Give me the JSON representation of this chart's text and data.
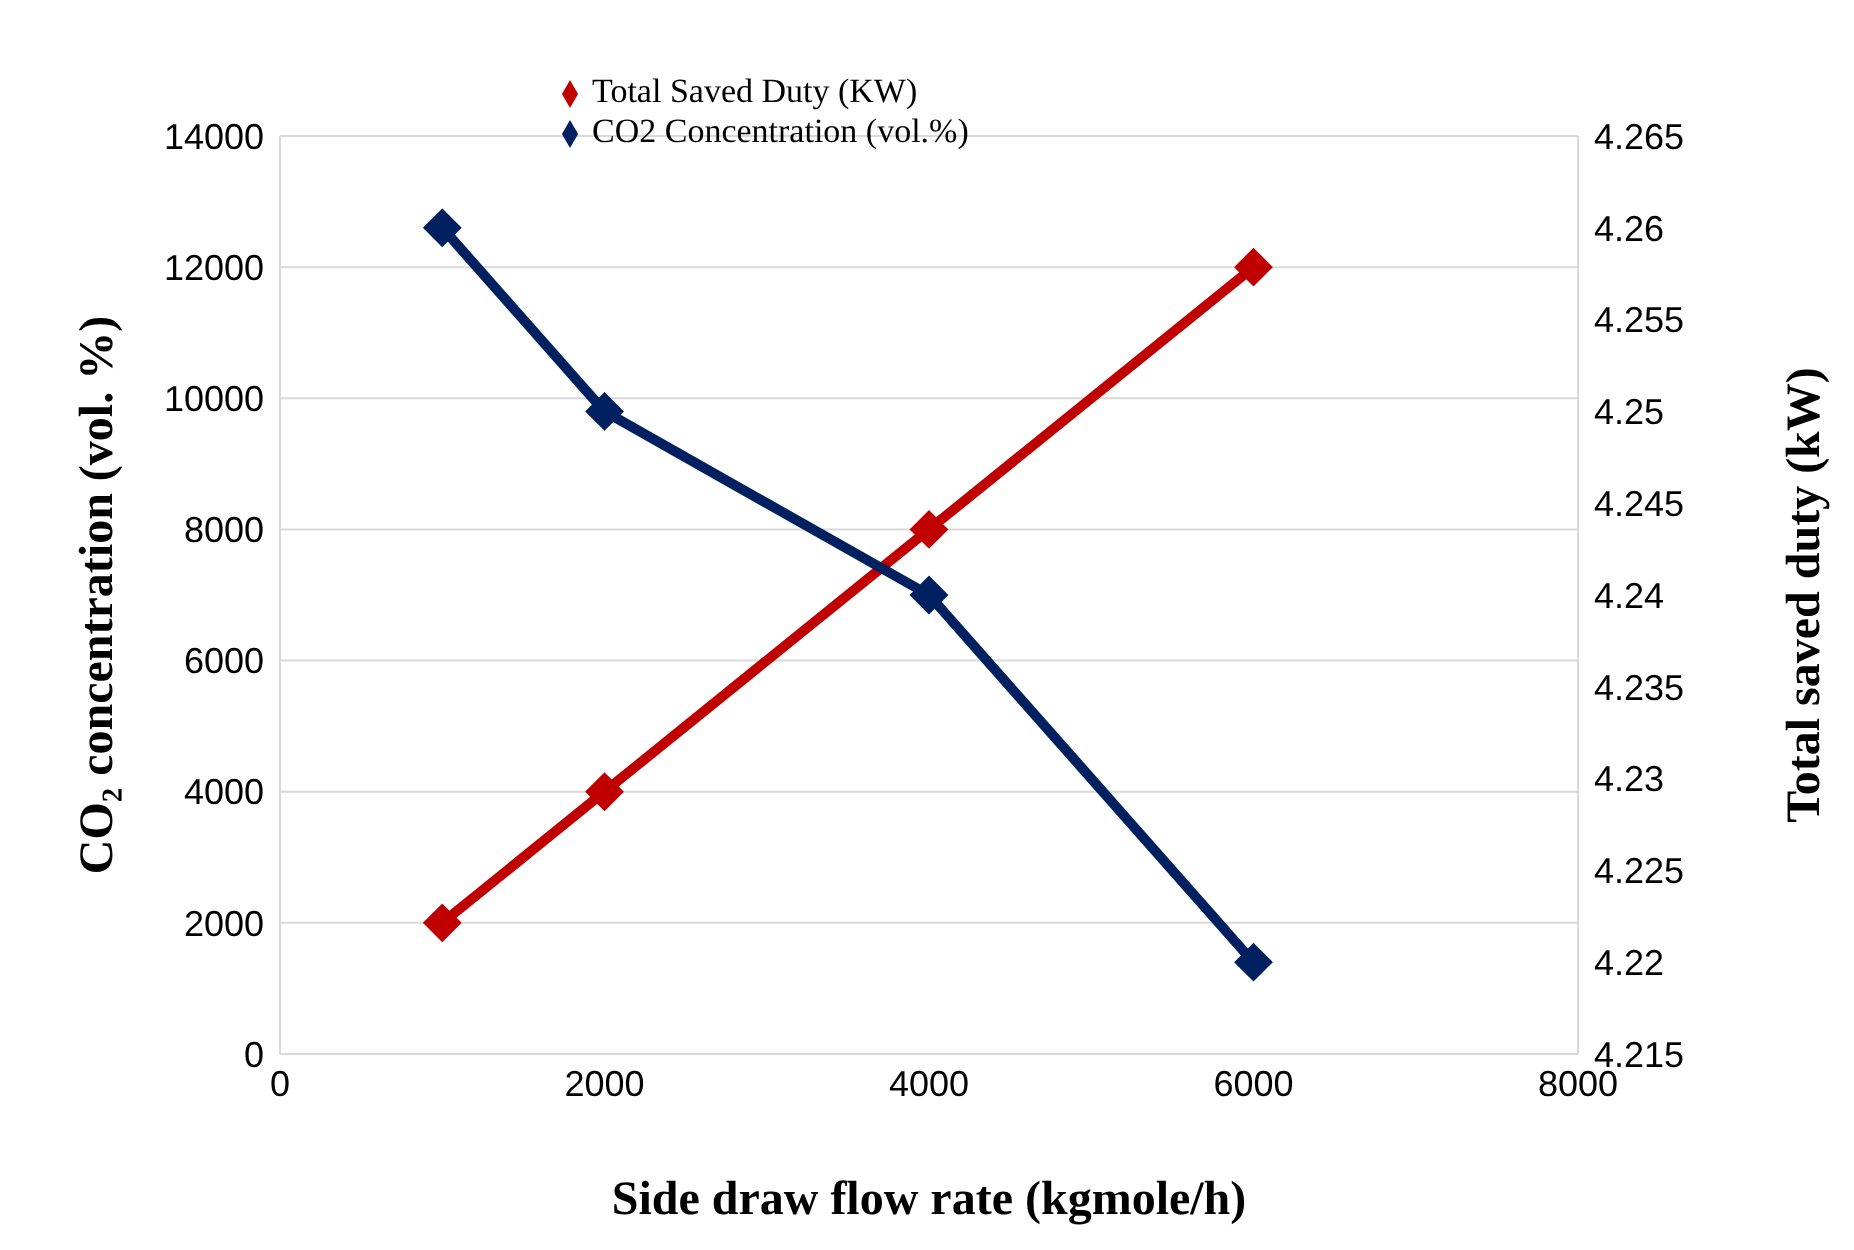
{
  "chart_data": {
    "type": "line",
    "xlabel": "Side draw flow rate (kgmole/h)",
    "ylabel": "CO₂ concentration (vol. %)",
    "y2label": "Total saved duty (kW)",
    "xlim": [
      0,
      8000
    ],
    "xticks": [
      0,
      2000,
      4000,
      6000,
      8000
    ],
    "ylim": [
      0,
      14000
    ],
    "yticks": [
      0,
      2000,
      4000,
      6000,
      8000,
      10000,
      12000,
      14000
    ],
    "y2lim": [
      4.215,
      4.265
    ],
    "y2ticks": [
      4.215,
      4.22,
      4.225,
      4.23,
      4.235,
      4.24,
      4.245,
      4.25,
      4.255,
      4.26,
      4.265
    ],
    "x": [
      1000,
      2000,
      4000,
      6000
    ],
    "grid": "y",
    "legend": "top",
    "marker": "diamond",
    "line_style": "solid",
    "series": [
      {
        "name": "Total Saved Duty (KW)",
        "color": "#c00000",
        "values": [
          2000,
          4000,
          8000,
          12000
        ]
      },
      {
        "name": "CO2 Concentration (vol.%)",
        "color": "#002060",
        "axis": "y2",
        "values": [
          4.26,
          4.25,
          4.24,
          4.22
        ]
      }
    ]
  }
}
